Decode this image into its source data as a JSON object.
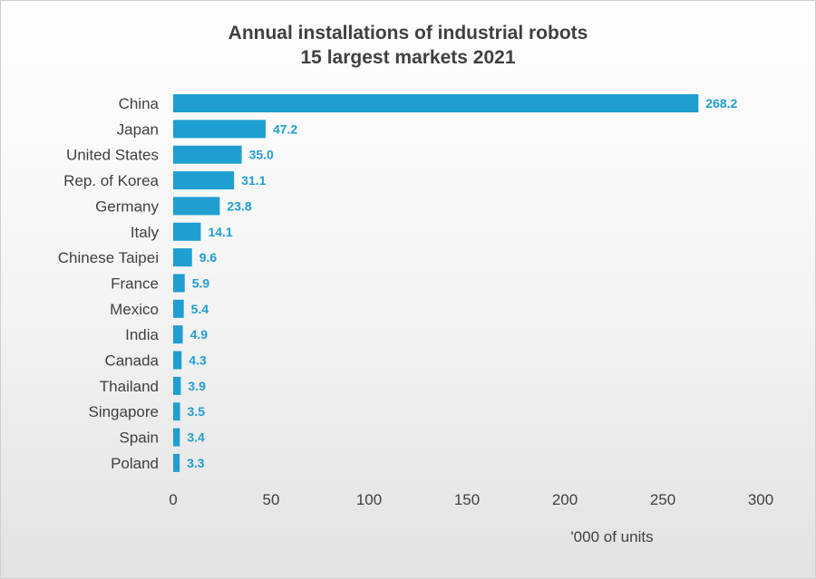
{
  "chart_data": {
    "type": "bar",
    "orientation": "horizontal",
    "title": "Annual installations of industrial robots",
    "subtitle": "15 largest markets 2021",
    "categories": [
      "China",
      "Japan",
      "United States",
      "Rep. of Korea",
      "Germany",
      "Italy",
      "Chinese Taipei",
      "France",
      "Mexico",
      "India",
      "Canada",
      "Thailand",
      "Singapore",
      "Spain",
      "Poland"
    ],
    "values": [
      268.2,
      47.2,
      35.0,
      31.1,
      23.8,
      14.1,
      9.6,
      5.9,
      5.4,
      4.9,
      4.3,
      3.9,
      3.5,
      3.4,
      3.3
    ],
    "value_labels": [
      "268.2",
      "47.2",
      "35.0",
      "31.1",
      "23.8",
      "14.1",
      "9.6",
      "5.9",
      "5.4",
      "4.9",
      "4.3",
      "3.9",
      "3.5",
      "3.4",
      "3.3"
    ],
    "xlabel": "'000 of units",
    "ylabel": "",
    "xlim": [
      0,
      300
    ],
    "xticks": [
      0,
      50,
      100,
      150,
      200,
      250,
      300
    ],
    "grid": false,
    "legend": "none",
    "bar_color": "#1f9ed1"
  }
}
